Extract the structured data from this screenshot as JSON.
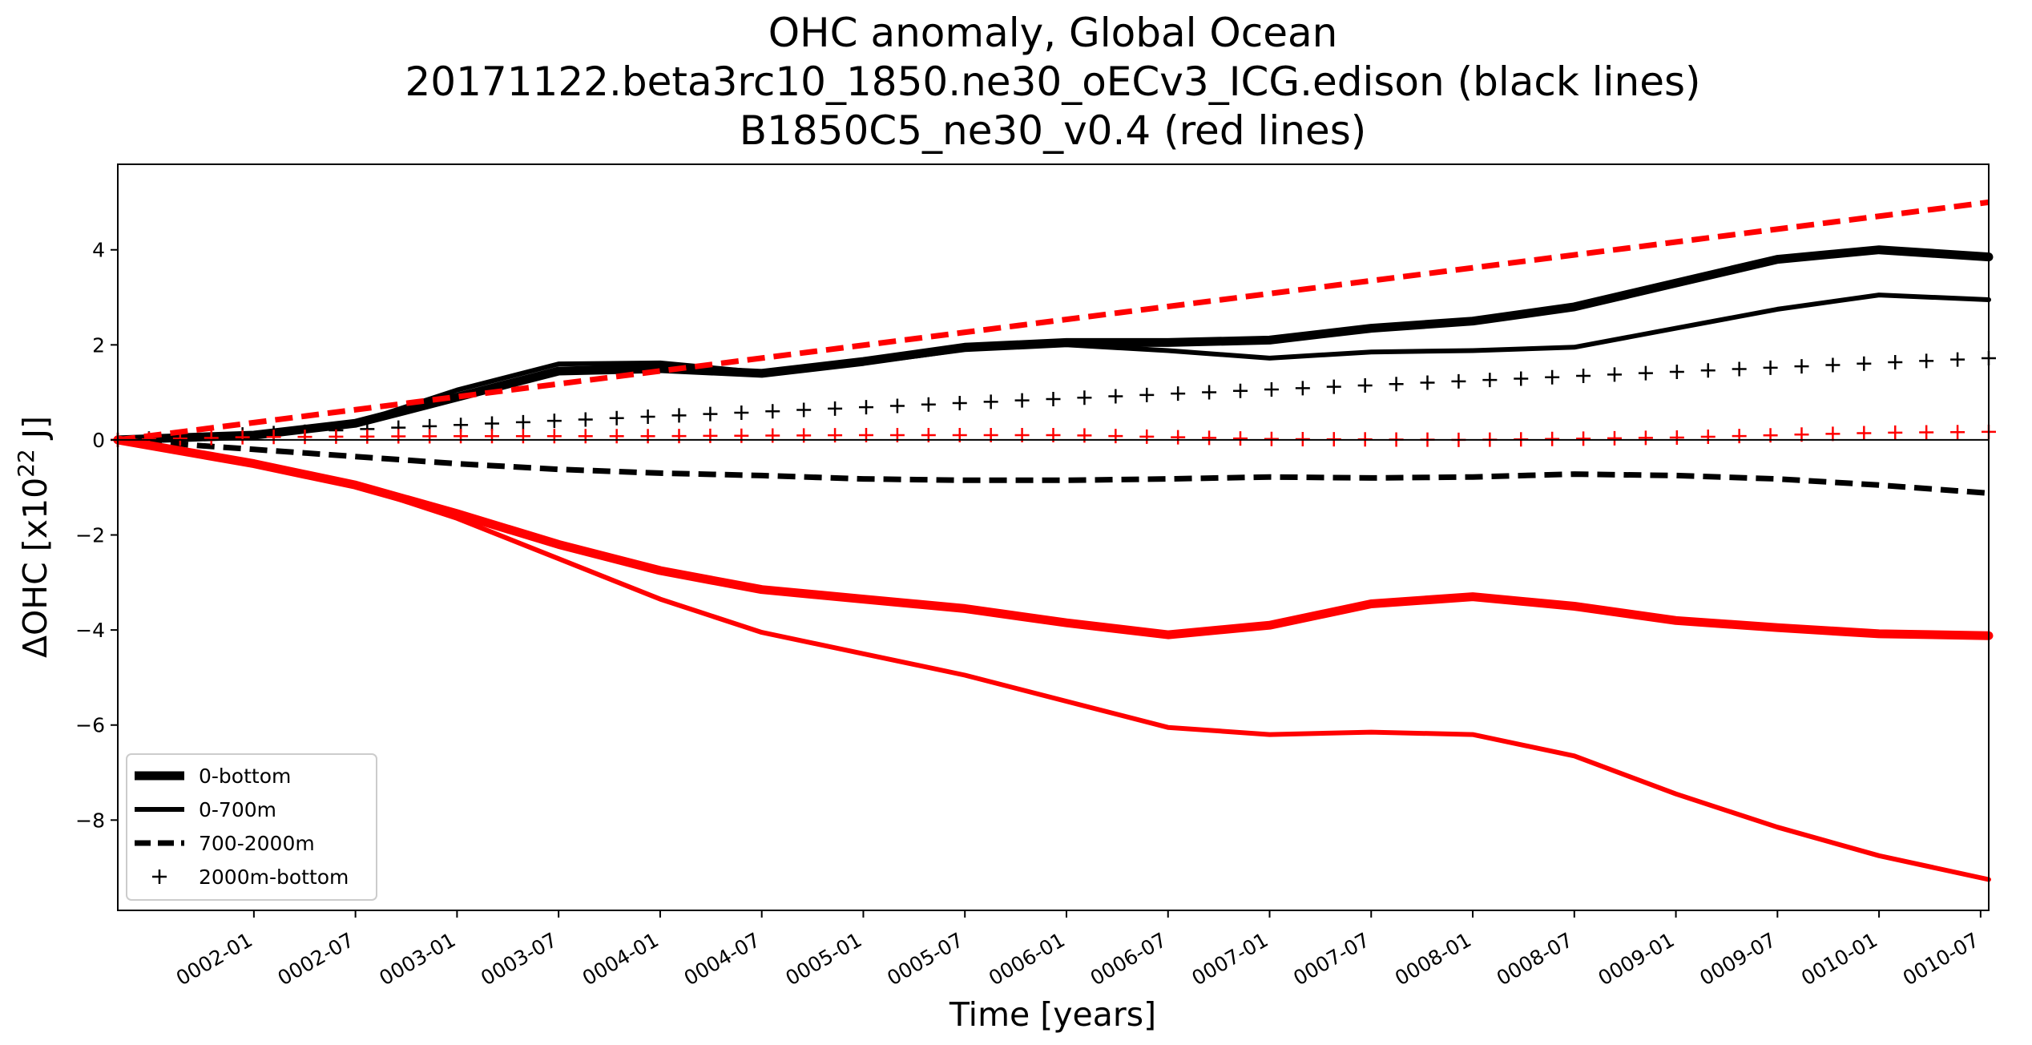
{
  "chart_data": {
    "type": "line",
    "title_lines": [
      "OHC anomaly, Global Ocean",
      "20171122.beta3rc10_1850.ne30_oECv3_ICG.edison (black lines)",
      "B1850C5_ne30_v0.4 (red lines)"
    ],
    "xlabel": "Time [years]",
    "ylabel_main": "ΔOHC  [x10",
    "ylabel_sup": "22",
    "ylabel_end": " J]",
    "x_range_years": [
      1.33,
      10.54
    ],
    "ylim": [
      -9.9,
      5.8
    ],
    "x_ticks": [
      {
        "x": 2.0,
        "label": "0002-01"
      },
      {
        "x": 2.5,
        "label": "0002-07"
      },
      {
        "x": 3.0,
        "label": "0003-01"
      },
      {
        "x": 3.5,
        "label": "0003-07"
      },
      {
        "x": 4.0,
        "label": "0004-01"
      },
      {
        "x": 4.5,
        "label": "0004-07"
      },
      {
        "x": 5.0,
        "label": "0005-01"
      },
      {
        "x": 5.5,
        "label": "0005-07"
      },
      {
        "x": 6.0,
        "label": "0006-01"
      },
      {
        "x": 6.5,
        "label": "0006-07"
      },
      {
        "x": 7.0,
        "label": "0007-01"
      },
      {
        "x": 7.5,
        "label": "0007-07"
      },
      {
        "x": 8.0,
        "label": "0008-01"
      },
      {
        "x": 8.5,
        "label": "0008-07"
      },
      {
        "x": 9.0,
        "label": "0009-01"
      },
      {
        "x": 9.5,
        "label": "0009-07"
      },
      {
        "x": 10.0,
        "label": "0010-01"
      },
      {
        "x": 10.5,
        "label": "0010-07"
      }
    ],
    "y_ticks": [
      {
        "y": 4,
        "label": "4"
      },
      {
        "y": 2,
        "label": "2"
      },
      {
        "y": 0,
        "label": "0"
      },
      {
        "y": -2,
        "label": "−2"
      },
      {
        "y": -4,
        "label": "−4"
      },
      {
        "y": -6,
        "label": "−6"
      },
      {
        "y": -8,
        "label": "−8"
      }
    ],
    "zero_line": true,
    "grid": false,
    "legend": {
      "placement": "lower-left",
      "entries": [
        {
          "label": "0-bottom",
          "style": "thick"
        },
        {
          "label": "0-700m",
          "style": "solid"
        },
        {
          "label": "700-2000m",
          "style": "dashed"
        },
        {
          "label": "2000m-bottom",
          "style": "plus"
        }
      ]
    },
    "series": [
      {
        "run": "black",
        "color": "#000000",
        "style": "thick",
        "x": [
          1.33,
          2.0,
          2.5,
          3.0,
          3.5,
          4.0,
          4.5,
          5.0,
          5.5,
          6.0,
          6.5,
          7.0,
          7.5,
          8.0,
          8.5,
          9.0,
          9.5,
          10.0,
          10.54
        ],
        "y": [
          0,
          0.1,
          0.35,
          0.9,
          1.45,
          1.5,
          1.4,
          1.65,
          1.95,
          2.05,
          2.05,
          2.1,
          2.35,
          2.5,
          2.8,
          3.3,
          3.8,
          4.0,
          3.85
        ]
      },
      {
        "run": "black",
        "color": "#000000",
        "style": "solid",
        "x": [
          1.33,
          2.0,
          2.5,
          3.0,
          3.5,
          4.0,
          4.5,
          5.0,
          5.5,
          6.0,
          6.5,
          7.0,
          7.5,
          8.0,
          8.5,
          9.0,
          9.5,
          10.0,
          10.54
        ],
        "y": [
          0,
          0.1,
          0.35,
          1.05,
          1.6,
          1.62,
          1.42,
          1.62,
          1.9,
          2.0,
          1.88,
          1.72,
          1.85,
          1.88,
          1.95,
          2.35,
          2.75,
          3.05,
          2.95
        ]
      },
      {
        "run": "black",
        "color": "#000000",
        "style": "dashed",
        "x": [
          1.33,
          2.0,
          2.5,
          3.0,
          3.5,
          4.0,
          4.5,
          5.0,
          5.5,
          6.0,
          6.5,
          7.0,
          7.5,
          8.0,
          8.5,
          9.0,
          9.5,
          10.0,
          10.54
        ],
        "y": [
          0,
          -0.2,
          -0.35,
          -0.5,
          -0.62,
          -0.7,
          -0.75,
          -0.82,
          -0.85,
          -0.85,
          -0.82,
          -0.78,
          -0.8,
          -0.78,
          -0.72,
          -0.75,
          -0.82,
          -0.95,
          -1.12
        ]
      },
      {
        "run": "black",
        "color": "#000000",
        "style": "plus",
        "x": [
          1.33,
          10.54
        ],
        "y": [
          0,
          1.72
        ]
      },
      {
        "run": "red",
        "color": "#ff0000",
        "style": "thick",
        "x": [
          1.33,
          2.0,
          2.5,
          3.0,
          3.5,
          4.0,
          4.5,
          5.0,
          5.5,
          6.0,
          6.5,
          7.0,
          7.5,
          8.0,
          8.5,
          9.0,
          9.5,
          10.0,
          10.54
        ],
        "y": [
          0,
          -0.5,
          -0.95,
          -1.55,
          -2.2,
          -2.75,
          -3.15,
          -3.35,
          -3.55,
          -3.85,
          -4.1,
          -3.9,
          -3.45,
          -3.3,
          -3.5,
          -3.8,
          -3.95,
          -4.08,
          -4.12
        ]
      },
      {
        "run": "red",
        "color": "#ff0000",
        "style": "solid",
        "x": [
          1.33,
          2.0,
          2.5,
          3.0,
          3.5,
          4.0,
          4.5,
          5.0,
          5.5,
          6.0,
          6.5,
          7.0,
          7.5,
          8.0,
          8.5,
          9.0,
          9.5,
          10.0,
          10.54
        ],
        "y": [
          0,
          -0.5,
          -0.95,
          -1.65,
          -2.5,
          -3.35,
          -4.05,
          -4.5,
          -4.95,
          -5.5,
          -6.05,
          -6.2,
          -6.15,
          -6.2,
          -6.65,
          -7.45,
          -8.15,
          -8.75,
          -9.25
        ]
      },
      {
        "run": "red",
        "color": "#ff0000",
        "style": "dashed",
        "x": [
          1.33,
          10.54
        ],
        "y": [
          0,
          5.0
        ]
      },
      {
        "run": "red",
        "color": "#ff0000",
        "style": "plus",
        "x": [
          1.33,
          2.0,
          3.0,
          4.0,
          5.0,
          6.0,
          7.0,
          8.0,
          9.0,
          10.0,
          10.54
        ],
        "y": [
          0,
          0.06,
          0.08,
          0.08,
          0.1,
          0.1,
          0.02,
          0.0,
          0.05,
          0.15,
          0.17
        ]
      }
    ]
  }
}
